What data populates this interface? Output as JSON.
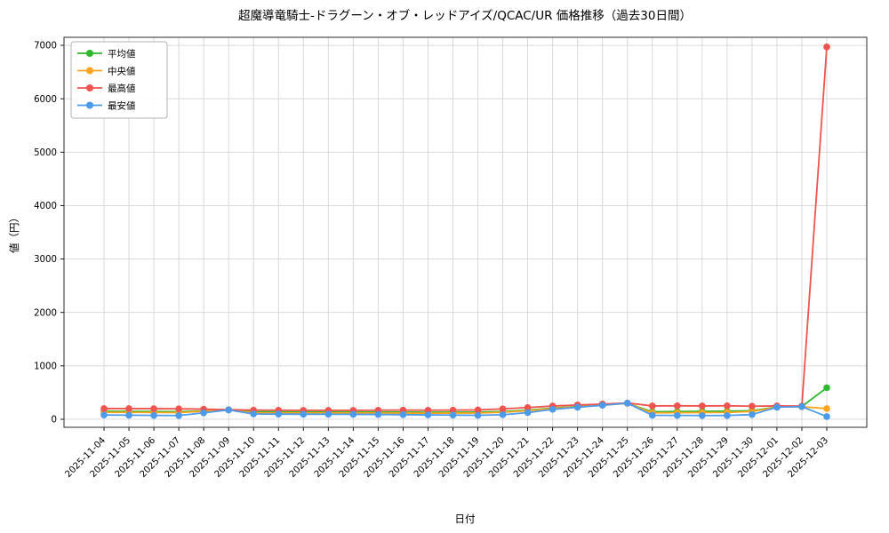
{
  "chart_data": {
    "type": "line",
    "title": "超魔導竜騎士-ドラグーン・オブ・レッドアイズ/QCAC/UR 価格推移（過去30日間）",
    "xlabel": "日付",
    "ylabel": "値（円）",
    "ylim": [
      0,
      7000
    ],
    "ytick_step": 1000,
    "grid": true,
    "legend_position": "upper-left",
    "marker": "circle",
    "categories": [
      "2025-11-04",
      "2025-11-05",
      "2025-11-06",
      "2025-11-07",
      "2025-11-08",
      "2025-11-09",
      "2025-11-10",
      "2025-11-11",
      "2025-11-12",
      "2025-11-13",
      "2025-11-14",
      "2025-11-15",
      "2025-11-16",
      "2025-11-17",
      "2025-11-18",
      "2025-11-19",
      "2025-11-20",
      "2025-11-21",
      "2025-11-22",
      "2025-11-23",
      "2025-11-24",
      "2025-11-25",
      "2025-11-26",
      "2025-11-27",
      "2025-11-28",
      "2025-11-29",
      "2025-11-30",
      "2025-12-01",
      "2025-12-02",
      "2025-12-03"
    ],
    "series": [
      {
        "name": "平均値",
        "color": "#2eb82e",
        "values": [
          150,
          148,
          145,
          143,
          155,
          175,
          140,
          138,
          136,
          137,
          136,
          135,
          134,
          132,
          133,
          134,
          145,
          170,
          210,
          240,
          270,
          300,
          140,
          145,
          148,
          150,
          160,
          230,
          240,
          590
        ]
      },
      {
        "name": "中央値",
        "color": "#ffa420",
        "values": [
          130,
          128,
          126,
          124,
          150,
          175,
          120,
          118,
          117,
          118,
          117,
          116,
          115,
          114,
          115,
          116,
          130,
          160,
          200,
          235,
          265,
          298,
          120,
          122,
          125,
          128,
          145,
          228,
          235,
          200
        ]
      },
      {
        "name": "最高値",
        "color": "#ef5350",
        "values": [
          200,
          200,
          198,
          196,
          190,
          180,
          172,
          170,
          168,
          168,
          168,
          170,
          172,
          170,
          172,
          175,
          195,
          220,
          248,
          268,
          285,
          305,
          250,
          252,
          250,
          252,
          245,
          250,
          248,
          6970
        ]
      },
      {
        "name": "最安値",
        "color": "#4c9aea",
        "values": [
          80,
          76,
          72,
          70,
          120,
          175,
          100,
          96,
          94,
          94,
          92,
          90,
          86,
          82,
          78,
          74,
          85,
          125,
          185,
          225,
          262,
          302,
          75,
          72,
          70,
          70,
          88,
          226,
          238,
          50
        ]
      }
    ],
    "plot_colors": {
      "grid": "#d6d6d6",
      "frame": "#2b2b2b",
      "background": "#ffffff",
      "legend_border": "#b3b3b3"
    }
  }
}
